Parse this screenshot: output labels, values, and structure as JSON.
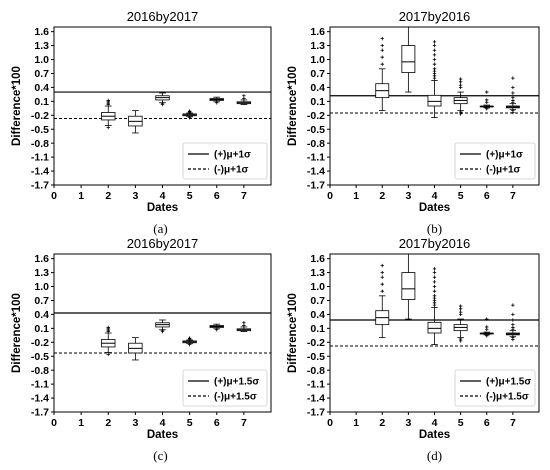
{
  "chart_data": [
    {
      "type": "box",
      "caption": "(a)",
      "title": "2016by2017",
      "xlabel": "Dates",
      "ylabel": "Difference*100",
      "x_ticks": [
        0,
        1,
        2,
        3,
        4,
        5,
        6,
        7
      ],
      "y_ticks": [
        -1.7,
        -1.4,
        -1.1,
        -0.8,
        -0.5,
        -0.2,
        0.1,
        0.4,
        0.7,
        1.0,
        1.3,
        1.6
      ],
      "xlim": [
        0,
        8
      ],
      "ylim": [
        -1.7,
        1.7
      ],
      "legend": {
        "placement": "lower-right",
        "entries": [
          {
            "label": "(+)μ+1σ",
            "style": "solid"
          },
          {
            "label": "(-)μ+1σ",
            "style": "dashed"
          }
        ]
      },
      "threshold_upper": 0.3,
      "threshold_lower": -0.27,
      "boxes": [
        {
          "x": 2,
          "whislo": -0.42,
          "q1": -0.3,
          "med": -0.22,
          "q3": -0.14,
          "whishi": 0.0,
          "fliers": [
            0.03,
            0.06,
            0.09,
            0.12,
            -0.46
          ]
        },
        {
          "x": 3,
          "whislo": -0.58,
          "q1": -0.43,
          "med": -0.33,
          "q3": -0.22,
          "whislo_note": "",
          "whishi": -0.1,
          "fliers": []
        },
        {
          "x": 4,
          "whislo": 0.07,
          "q1": 0.13,
          "med": 0.18,
          "q3": 0.22,
          "whishi": 0.28,
          "fliers": [
            0.03,
            0.06
          ]
        },
        {
          "x": 5,
          "whislo": -0.23,
          "q1": -0.21,
          "med": -0.19,
          "q3": -0.17,
          "whishi": -0.15,
          "fliers": [
            -0.14,
            -0.12,
            -0.11,
            -0.25
          ]
        },
        {
          "x": 6,
          "whislo": 0.09,
          "q1": 0.12,
          "med": 0.14,
          "q3": 0.16,
          "whishi": 0.19,
          "fliers": [
            0.07
          ]
        },
        {
          "x": 7,
          "whislo": 0.03,
          "q1": 0.05,
          "med": 0.07,
          "q3": 0.09,
          "whishi": 0.13,
          "fliers": [
            0.16,
            0.22
          ]
        }
      ]
    },
    {
      "type": "box",
      "caption": "(b)",
      "title": "2017by2016",
      "xlabel": "Dates",
      "ylabel": "Difference*100",
      "x_ticks": [
        0,
        1,
        2,
        3,
        4,
        5,
        6,
        7
      ],
      "y_ticks": [
        -1.7,
        -1.4,
        -1.1,
        -0.8,
        -0.5,
        -0.2,
        0.1,
        0.4,
        0.7,
        1.0,
        1.3,
        1.6
      ],
      "xlim": [
        0,
        8
      ],
      "ylim": [
        -1.7,
        1.7
      ],
      "legend": {
        "placement": "lower-right",
        "entries": [
          {
            "label": "(+)μ+1σ",
            "style": "solid"
          },
          {
            "label": "(-)μ+1σ",
            "style": "dashed"
          }
        ]
      },
      "threshold_upper": 0.22,
      "threshold_lower": -0.15,
      "boxes": [
        {
          "x": 2,
          "whislo": -0.1,
          "q1": 0.18,
          "med": 0.33,
          "q3": 0.48,
          "whishi": 0.8,
          "fliers": [
            0.9,
            1.05,
            1.2,
            1.3,
            1.45
          ]
        },
        {
          "x": 3,
          "whislo": 0.3,
          "q1": 0.72,
          "med": 0.95,
          "q3": 1.3,
          "whishi": 1.72,
          "fliers": []
        },
        {
          "x": 4,
          "whislo": -0.25,
          "q1": 0.0,
          "med": 0.1,
          "q3": 0.23,
          "whishi": 0.55,
          "fliers": [
            0.6,
            0.7,
            0.8,
            0.9,
            1.0,
            1.1,
            1.2,
            1.3,
            1.38,
            0.65,
            0.75
          ]
        },
        {
          "x": 5,
          "whislo": -0.1,
          "q1": 0.05,
          "med": 0.12,
          "q3": 0.18,
          "whishi": 0.3,
          "fliers": [
            0.4,
            0.45,
            0.52,
            0.58,
            -0.13,
            -0.17
          ]
        },
        {
          "x": 6,
          "whislo": -0.04,
          "q1": -0.02,
          "med": -0.01,
          "q3": 0.0,
          "whishi": 0.02,
          "fliers": [
            0.08,
            0.13,
            0.3,
            -0.06
          ]
        },
        {
          "x": 7,
          "whislo": -0.08,
          "q1": -0.04,
          "med": -0.02,
          "q3": 0.0,
          "whishi": 0.05,
          "fliers": [
            0.08,
            0.12,
            0.18,
            0.28,
            0.4,
            0.6,
            -0.1,
            -0.14
          ]
        }
      ]
    },
    {
      "type": "box",
      "caption": "(c)",
      "title": "2016by2017",
      "xlabel": "Dates",
      "ylabel": "Difference*100",
      "x_ticks": [
        0,
        1,
        2,
        3,
        4,
        5,
        6,
        7
      ],
      "y_ticks": [
        -1.7,
        -1.4,
        -1.1,
        -0.8,
        -0.5,
        -0.2,
        0.1,
        0.4,
        0.7,
        1.0,
        1.3,
        1.6
      ],
      "xlim": [
        0,
        8
      ],
      "ylim": [
        -1.7,
        1.7
      ],
      "legend": {
        "placement": "lower-right",
        "entries": [
          {
            "label": "(+)μ+1.5σ",
            "style": "solid"
          },
          {
            "label": "(-)μ+1.5σ",
            "style": "dashed"
          }
        ]
      },
      "threshold_upper": 0.43,
      "threshold_lower": -0.43,
      "boxes": [
        {
          "x": 2,
          "whislo": -0.42,
          "q1": -0.3,
          "med": -0.22,
          "q3": -0.14,
          "whishi": 0.0,
          "fliers": [
            0.03,
            0.06,
            0.09,
            0.12,
            -0.46
          ]
        },
        {
          "x": 3,
          "whislo": -0.58,
          "q1": -0.43,
          "med": -0.33,
          "q3": -0.22,
          "whishi": -0.1,
          "fliers": []
        },
        {
          "x": 4,
          "whislo": 0.07,
          "q1": 0.13,
          "med": 0.18,
          "q3": 0.22,
          "whishi": 0.28,
          "fliers": [
            0.03,
            0.06
          ]
        },
        {
          "x": 5,
          "whislo": -0.23,
          "q1": -0.21,
          "med": -0.19,
          "q3": -0.17,
          "whishi": -0.15,
          "fliers": [
            -0.14,
            -0.12,
            -0.11,
            -0.25
          ]
        },
        {
          "x": 6,
          "whislo": 0.09,
          "q1": 0.12,
          "med": 0.14,
          "q3": 0.16,
          "whishi": 0.19,
          "fliers": [
            0.07
          ]
        },
        {
          "x": 7,
          "whislo": 0.03,
          "q1": 0.05,
          "med": 0.07,
          "q3": 0.09,
          "whishi": 0.13,
          "fliers": [
            0.16,
            0.22
          ]
        }
      ]
    },
    {
      "type": "box",
      "caption": "(d)",
      "title": "2017by2016",
      "xlabel": "Dates",
      "ylabel": "Difference*100",
      "x_ticks": [
        0,
        1,
        2,
        3,
        4,
        5,
        6,
        7
      ],
      "y_ticks": [
        -1.7,
        -1.4,
        -1.1,
        -0.8,
        -0.5,
        -0.2,
        0.1,
        0.4,
        0.7,
        1.0,
        1.3,
        1.6
      ],
      "xlim": [
        0,
        8
      ],
      "ylim": [
        -1.7,
        1.7
      ],
      "legend": {
        "placement": "lower-right",
        "entries": [
          {
            "label": "(+)μ+1.5σ",
            "style": "solid"
          },
          {
            "label": "(-)μ+1.5σ",
            "style": "dashed"
          }
        ]
      },
      "threshold_upper": 0.28,
      "threshold_lower": -0.28,
      "boxes": [
        {
          "x": 2,
          "whislo": -0.1,
          "q1": 0.18,
          "med": 0.33,
          "q3": 0.48,
          "whishi": 0.8,
          "fliers": [
            0.9,
            1.05,
            1.2,
            1.3,
            1.45
          ]
        },
        {
          "x": 3,
          "whislo": 0.3,
          "q1": 0.72,
          "med": 0.95,
          "q3": 1.3,
          "whishi": 1.72,
          "fliers": []
        },
        {
          "x": 4,
          "whislo": -0.25,
          "q1": 0.0,
          "med": 0.1,
          "q3": 0.23,
          "whishi": 0.55,
          "fliers": [
            0.6,
            0.7,
            0.8,
            0.9,
            1.0,
            1.1,
            1.2,
            1.3,
            1.38,
            0.65,
            0.75
          ]
        },
        {
          "x": 5,
          "whislo": -0.1,
          "q1": 0.05,
          "med": 0.12,
          "q3": 0.18,
          "whishi": 0.3,
          "fliers": [
            0.4,
            0.45,
            0.52,
            0.58,
            -0.13,
            -0.17
          ]
        },
        {
          "x": 6,
          "whislo": -0.04,
          "q1": -0.02,
          "med": -0.01,
          "q3": 0.0,
          "whishi": 0.02,
          "fliers": [
            0.08,
            0.13,
            0.3,
            -0.06
          ]
        },
        {
          "x": 7,
          "whislo": -0.08,
          "q1": -0.04,
          "med": -0.02,
          "q3": 0.0,
          "whishi": 0.05,
          "fliers": [
            0.08,
            0.12,
            0.18,
            0.28,
            0.4,
            0.6,
            -0.1,
            -0.14
          ]
        }
      ]
    }
  ]
}
